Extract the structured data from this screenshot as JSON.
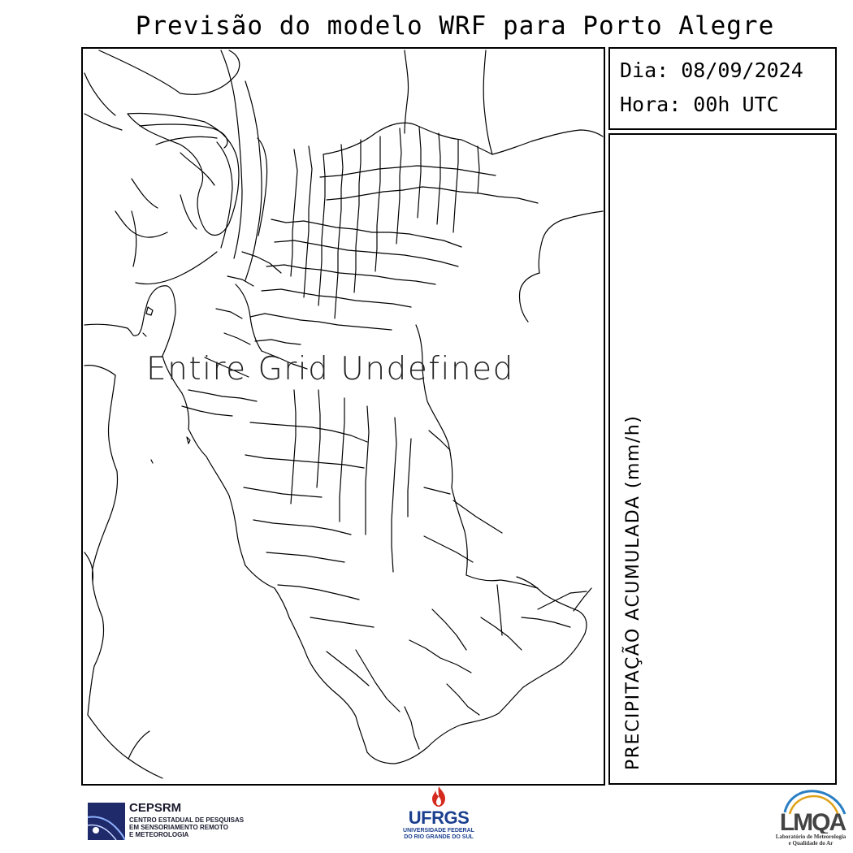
{
  "title": "Previsão do modelo WRF para Porto Alegre",
  "info": {
    "date_line": "Dia: 08/09/2024",
    "time_line": "Hora: 00h UTC"
  },
  "map": {
    "message": "Entire Grid Undefined"
  },
  "legend": {
    "label": "PRECIPITAÇÃO ACUMULADA (mm/h)"
  },
  "logos": {
    "cepsrm": {
      "name": "CEPSRM",
      "line1": "CENTRO ESTADUAL DE PESQUISAS",
      "line2": "EM SENSORIAMENTO REMOTO",
      "line3": "E METEOROLOGIA"
    },
    "ufrgs": {
      "name": "UFRGS",
      "line1": "UNIVERSIDADE FEDERAL",
      "line2": "DO RIO GRANDE DO SUL"
    },
    "lmqa": {
      "name": "LMQA",
      "line1": "Laboratório de Meteorologia",
      "line2": "e Qualidade do Ar"
    }
  },
  "colors": {
    "ufrgs_blue": "#1b3f8f",
    "ufrgs_red": "#d62a1e",
    "cepsrm_navy": "#1f2a6b",
    "lmqa_gold": "#e0a21a",
    "lmqa_blue": "#2a7fc4"
  }
}
